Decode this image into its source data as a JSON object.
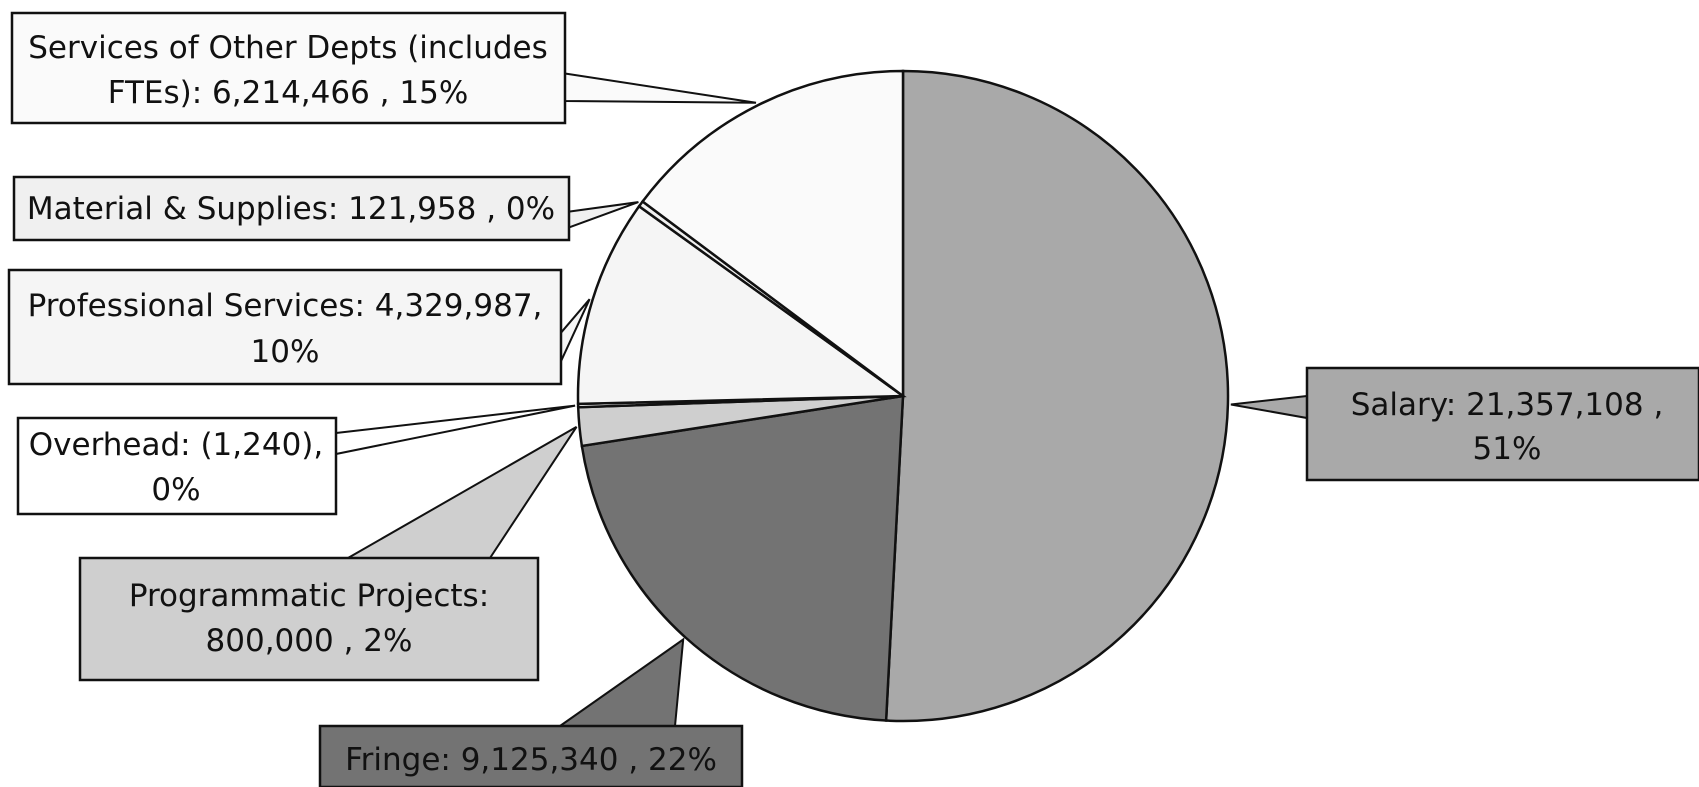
{
  "chart_data": {
    "type": "pie",
    "title": "",
    "slices": [
      {
        "label": "Salary",
        "value": 21357108,
        "value_text": "21,357,108",
        "percent_text": "51%",
        "color": "#a9a9a9",
        "text_color": "#1a1a1a"
      },
      {
        "label": "Fringe",
        "value": 9125340,
        "value_text": "9,125,340",
        "percent_text": "22%",
        "color": "#737373",
        "text_color": "#1a1a1a"
      },
      {
        "label": "Programmatic Projects",
        "value": 800000,
        "value_text": "800,000",
        "percent_text": "2%",
        "color": "#cfcfcf",
        "text_color": "#111111"
      },
      {
        "label": "Overhead",
        "value": -1240,
        "value_text": "(1,240)",
        "percent_text": "0%",
        "color": "#ffffff",
        "text_color": "#111111"
      },
      {
        "label": "Professional Services",
        "value": 4329987,
        "value_text": "4,329,987",
        "percent_text": "10%",
        "color": "#f5f5f5",
        "text_color": "#111111"
      },
      {
        "label": "Material & Supplies",
        "value": 121958,
        "value_text": "121,958",
        "percent_text": "0%",
        "color": "#f0f0f0",
        "text_color": "#111111"
      },
      {
        "label": "Services of Other Depts (includes FTEs)",
        "value": 6214466,
        "value_text": "6,214,466",
        "percent_text": "15%",
        "color": "#fafafa",
        "text_color": "#111111"
      }
    ],
    "callouts": [
      {
        "slice": "Salary",
        "lines": [
          "Salary:   21,357,108 ,",
          "51%"
        ]
      },
      {
        "slice": "Fringe",
        "lines": [
          "Fringe:  9,125,340 , 22%"
        ]
      },
      {
        "slice": "Programmatic Projects",
        "lines": [
          "Programmatic Projects:",
          "800,000 , 2%"
        ]
      },
      {
        "slice": "Overhead",
        "lines": [
          "Overhead:  (1,240),",
          "0%"
        ]
      },
      {
        "slice": "Professional Services",
        "lines": [
          "Professional Services: 4,329,987,",
          "10%"
        ]
      },
      {
        "slice": "Material & Supplies",
        "lines": [
          "Material & Supplies:  121,958 , 0%"
        ]
      },
      {
        "slice": "Services of Other Depts (includes FTEs)",
        "lines": [
          "Services of Other Depts (includes",
          "FTEs):  6,214,466 , 15%"
        ]
      }
    ],
    "legend": "none",
    "labels": "callouts"
  }
}
